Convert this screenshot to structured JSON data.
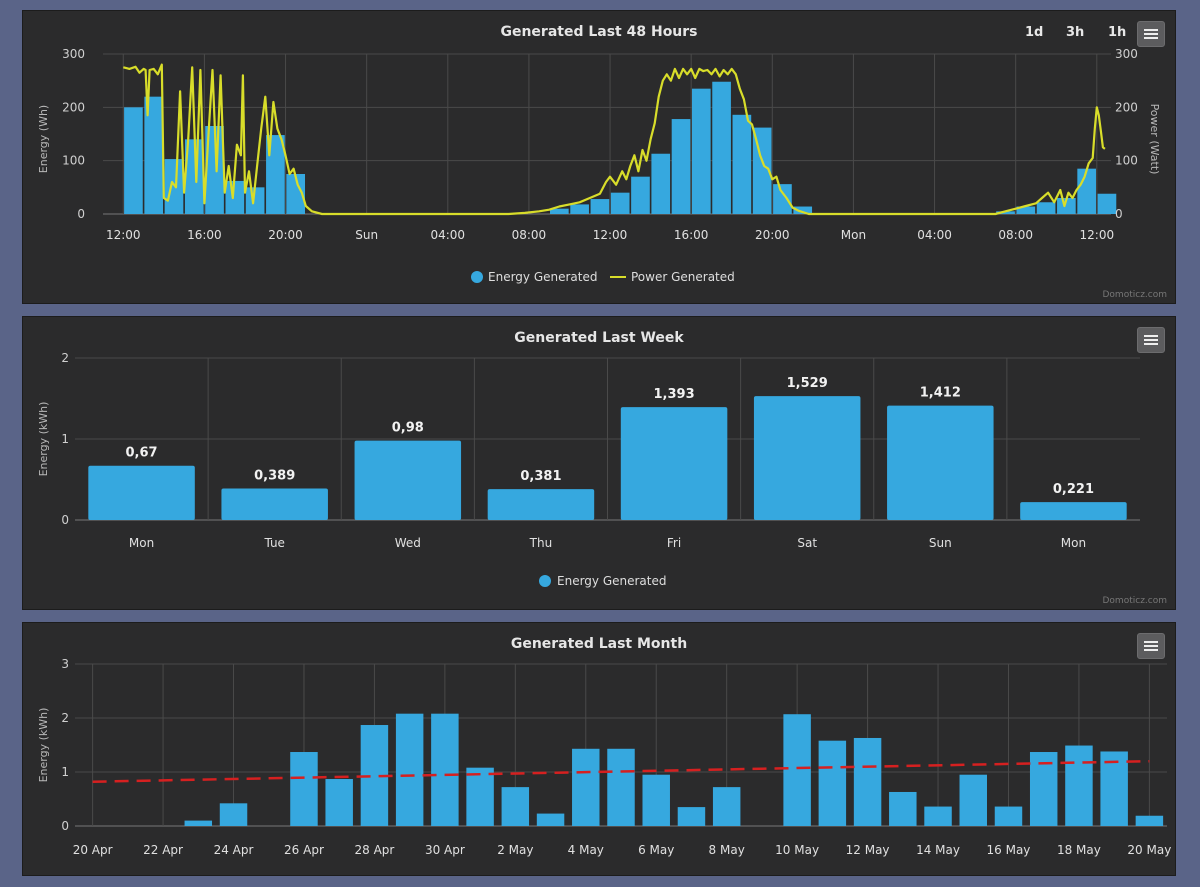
{
  "toolbar": {
    "zoom_1d": "1d",
    "zoom_3h": "3h",
    "zoom_1h": "1h"
  },
  "credits": "Domoticz.com",
  "colors": {
    "bar": "#36a8df",
    "line": "#d8dd2a",
    "trend": "#d62020",
    "grid": "#4a4a4a",
    "panel": "#2b2b2c"
  },
  "chart_data": [
    {
      "type": "bar",
      "title": "Generated Last 48 Hours",
      "ylabel": "Energy (Wh)",
      "ylabel_right": "Power (Watt)",
      "ylim": [
        0,
        300
      ],
      "yticks": [
        "0",
        "100",
        "200",
        "300"
      ],
      "yticks_right": [
        "0",
        "100",
        "200",
        "300"
      ],
      "x_range_hours": [
        -1,
        48.7
      ],
      "xticks": [
        {
          "h": 0,
          "label": "12:00"
        },
        {
          "h": 4,
          "label": "16:00"
        },
        {
          "h": 8,
          "label": "20:00"
        },
        {
          "h": 12,
          "label": "Sun"
        },
        {
          "h": 16,
          "label": "04:00"
        },
        {
          "h": 20,
          "label": "08:00"
        },
        {
          "h": 24,
          "label": "12:00"
        },
        {
          "h": 28,
          "label": "16:00"
        },
        {
          "h": 32,
          "label": "20:00"
        },
        {
          "h": 36,
          "label": "Mon"
        },
        {
          "h": 40,
          "label": "04:00"
        },
        {
          "h": 44,
          "label": "08:00"
        },
        {
          "h": 48,
          "label": "12:00"
        }
      ],
      "legend": [
        "Energy Generated",
        "Power Generated"
      ],
      "series": [
        {
          "name": "Energy Generated",
          "points": [
            [
              0.5,
              200
            ],
            [
              1.5,
              220
            ],
            [
              2.5,
              103
            ],
            [
              3.5,
              140
            ],
            [
              4.5,
              165
            ],
            [
              5.5,
              62
            ],
            [
              6.5,
              50
            ],
            [
              7.5,
              148
            ],
            [
              8.5,
              75
            ],
            [
              21.5,
              10
            ],
            [
              22.5,
              18
            ],
            [
              23.5,
              28
            ],
            [
              24.5,
              40
            ],
            [
              25.5,
              70
            ],
            [
              26.5,
              113
            ],
            [
              27.5,
              178
            ],
            [
              28.5,
              235
            ],
            [
              29.5,
              248
            ],
            [
              30.5,
              186
            ],
            [
              31.5,
              162
            ],
            [
              32.5,
              56
            ],
            [
              33.5,
              14
            ],
            [
              43.5,
              5
            ],
            [
              44.5,
              14
            ],
            [
              45.5,
              22
            ],
            [
              46.5,
              30
            ],
            [
              47.5,
              85
            ],
            [
              48.5,
              38
            ]
          ]
        },
        {
          "name": "Power Generated",
          "points": [
            [
              0,
              275
            ],
            [
              0.3,
              272
            ],
            [
              0.6,
              276
            ],
            [
              0.8,
              265
            ],
            [
              1.0,
              272
            ],
            [
              1.1,
              270
            ],
            [
              1.2,
              185
            ],
            [
              1.3,
              270
            ],
            [
              1.5,
              272
            ],
            [
              1.7,
              262
            ],
            [
              1.9,
              280
            ],
            [
              2.0,
              30
            ],
            [
              2.2,
              25
            ],
            [
              2.4,
              60
            ],
            [
              2.6,
              50
            ],
            [
              2.8,
              230
            ],
            [
              3.0,
              40
            ],
            [
              3.2,
              140
            ],
            [
              3.4,
              275
            ],
            [
              3.6,
              60
            ],
            [
              3.8,
              270
            ],
            [
              4.0,
              20
            ],
            [
              4.2,
              150
            ],
            [
              4.4,
              270
            ],
            [
              4.6,
              80
            ],
            [
              4.8,
              260
            ],
            [
              5.0,
              40
            ],
            [
              5.2,
              90
            ],
            [
              5.4,
              30
            ],
            [
              5.6,
              130
            ],
            [
              5.8,
              110
            ],
            [
              5.9,
              260
            ],
            [
              6.0,
              40
            ],
            [
              6.2,
              80
            ],
            [
              6.4,
              20
            ],
            [
              6.6,
              90
            ],
            [
              6.8,
              160
            ],
            [
              7.0,
              220
            ],
            [
              7.2,
              110
            ],
            [
              7.4,
              210
            ],
            [
              7.6,
              160
            ],
            [
              7.8,
              140
            ],
            [
              8.0,
              110
            ],
            [
              8.2,
              75
            ],
            [
              8.4,
              85
            ],
            [
              8.6,
              55
            ],
            [
              8.8,
              40
            ],
            [
              9.0,
              15
            ],
            [
              9.3,
              5
            ],
            [
              9.8,
              0
            ],
            [
              19.0,
              0
            ],
            [
              19.8,
              2
            ],
            [
              20.5,
              5
            ],
            [
              21.0,
              8
            ],
            [
              21.5,
              14
            ],
            [
              22.0,
              18
            ],
            [
              22.5,
              22
            ],
            [
              23.0,
              30
            ],
            [
              23.5,
              38
            ],
            [
              23.8,
              60
            ],
            [
              24.0,
              70
            ],
            [
              24.3,
              55
            ],
            [
              24.6,
              80
            ],
            [
              24.8,
              65
            ],
            [
              25.0,
              90
            ],
            [
              25.2,
              110
            ],
            [
              25.4,
              80
            ],
            [
              25.6,
              120
            ],
            [
              25.8,
              100
            ],
            [
              26.0,
              140
            ],
            [
              26.2,
              170
            ],
            [
              26.4,
              220
            ],
            [
              26.6,
              250
            ],
            [
              26.8,
              262
            ],
            [
              27.0,
              250
            ],
            [
              27.2,
              272
            ],
            [
              27.4,
              255
            ],
            [
              27.6,
              272
            ],
            [
              27.8,
              262
            ],
            [
              28.0,
              272
            ],
            [
              28.2,
              255
            ],
            [
              28.4,
              272
            ],
            [
              28.6,
              268
            ],
            [
              28.8,
              270
            ],
            [
              29.0,
              262
            ],
            [
              29.2,
              272
            ],
            [
              29.4,
              258
            ],
            [
              29.6,
              270
            ],
            [
              29.8,
              262
            ],
            [
              30.0,
              272
            ],
            [
              30.2,
              262
            ],
            [
              30.4,
              235
            ],
            [
              30.6,
              215
            ],
            [
              30.8,
              175
            ],
            [
              31.0,
              168
            ],
            [
              31.2,
              140
            ],
            [
              31.4,
              110
            ],
            [
              31.6,
              90
            ],
            [
              31.8,
              85
            ],
            [
              32.0,
              65
            ],
            [
              32.2,
              70
            ],
            [
              32.4,
              45
            ],
            [
              32.7,
              30
            ],
            [
              33.0,
              12
            ],
            [
              33.3,
              6
            ],
            [
              33.8,
              0
            ],
            [
              43.0,
              0
            ],
            [
              43.5,
              5
            ],
            [
              44.0,
              10
            ],
            [
              44.5,
              15
            ],
            [
              45.0,
              20
            ],
            [
              45.3,
              30
            ],
            [
              45.6,
              40
            ],
            [
              45.9,
              22
            ],
            [
              46.2,
              45
            ],
            [
              46.4,
              15
            ],
            [
              46.6,
              40
            ],
            [
              46.8,
              30
            ],
            [
              47.0,
              45
            ],
            [
              47.2,
              55
            ],
            [
              47.4,
              70
            ],
            [
              47.6,
              95
            ],
            [
              47.8,
              105
            ],
            [
              47.9,
              160
            ],
            [
              48.0,
              200
            ],
            [
              48.1,
              185
            ],
            [
              48.2,
              155
            ],
            [
              48.3,
              125
            ],
            [
              48.4,
              122
            ]
          ]
        }
      ]
    },
    {
      "type": "bar",
      "title": "Generated Last Week",
      "ylabel": "Energy (kWh)",
      "ylim": [
        0,
        2
      ],
      "yticks": [
        "0",
        "1",
        "2"
      ],
      "categories": [
        "Mon",
        "Tue",
        "Wed",
        "Thu",
        "Fri",
        "Sat",
        "Sun",
        "Mon"
      ],
      "values": [
        0.67,
        0.389,
        0.98,
        0.381,
        1.393,
        1.529,
        1.412,
        0.221
      ],
      "data_labels": [
        "0,67",
        "0,389",
        "0,98",
        "0,381",
        "1,393",
        "1,529",
        "1,412",
        "0,221"
      ],
      "legend": [
        "Energy Generated"
      ]
    },
    {
      "type": "bar",
      "title": "Generated Last Month",
      "ylabel": "Energy (kWh)",
      "ylim": [
        0,
        3
      ],
      "yticks": [
        "0",
        "1",
        "2",
        "3"
      ],
      "days": [
        "20 Apr",
        "21 Apr",
        "22 Apr",
        "23 Apr",
        "24 Apr",
        "25 Apr",
        "26 Apr",
        "27 Apr",
        "28 Apr",
        "29 Apr",
        "30 Apr",
        "1 May",
        "2 May",
        "3 May",
        "4 May",
        "5 May",
        "6 May",
        "7 May",
        "8 May",
        "9 May",
        "10 May",
        "11 May",
        "12 May",
        "13 May",
        "14 May",
        "15 May",
        "16 May",
        "17 May",
        "18 May",
        "19 May",
        "20 May"
      ],
      "values": [
        0,
        0,
        0,
        0.1,
        0.42,
        0,
        1.37,
        0.87,
        1.87,
        2.08,
        2.08,
        1.08,
        0.72,
        0.23,
        1.43,
        1.43,
        0.95,
        0.35,
        0.72,
        0,
        2.07,
        1.58,
        1.63,
        0.63,
        0.36,
        0.95,
        0.36,
        1.37,
        1.49,
        1.38,
        0.19
      ],
      "xticks": [
        "20 Apr",
        "22 Apr",
        "24 Apr",
        "26 Apr",
        "28 Apr",
        "30 Apr",
        "2 May",
        "4 May",
        "6 May",
        "8 May",
        "10 May",
        "12 May",
        "14 May",
        "16 May",
        "18 May",
        "20 May"
      ],
      "trend": [
        0.82,
        1.2
      ]
    }
  ]
}
